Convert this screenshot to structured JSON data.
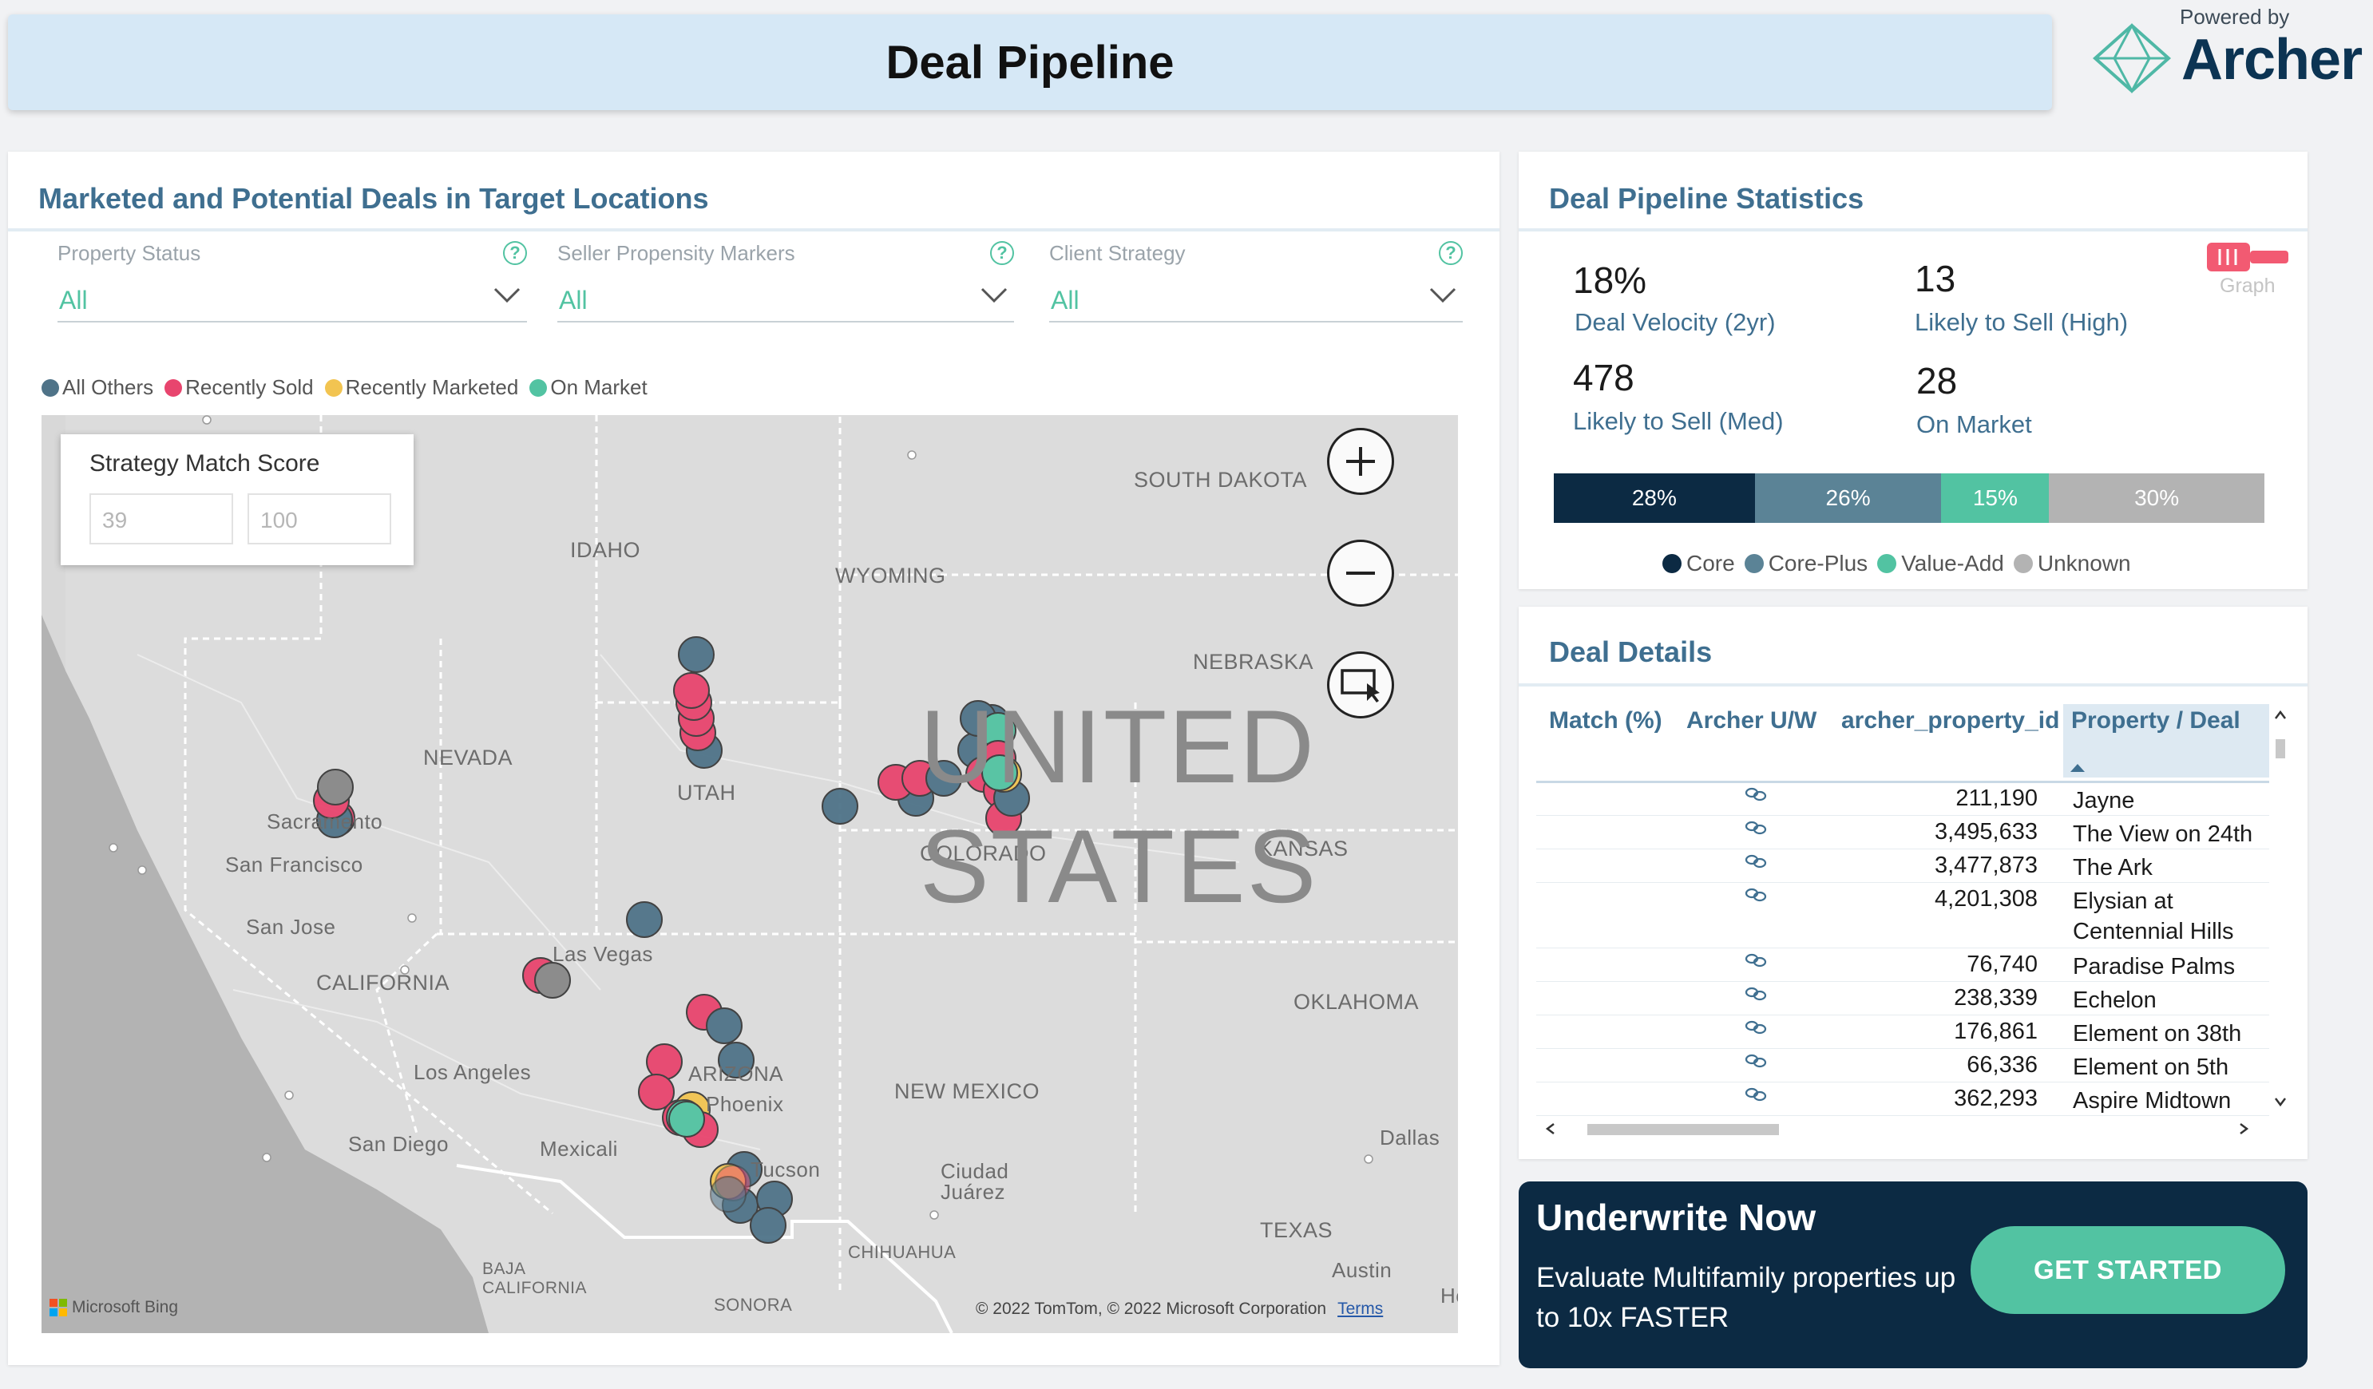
{
  "header": {
    "title": "Deal Pipeline",
    "powered_by": "Powered by",
    "brand": "Archer"
  },
  "map_card": {
    "title": "Marketed and Potential Deals in Target Locations",
    "filters": [
      {
        "label": "Property Status",
        "value": "All"
      },
      {
        "label": "Seller Propensity Markers",
        "value": "All"
      },
      {
        "label": "Client Strategy",
        "value": "All"
      }
    ],
    "legend": [
      {
        "label": "All Others",
        "color": "#4f7388"
      },
      {
        "label": "Recently Sold",
        "color": "#e8456e"
      },
      {
        "label": "Recently Marketed",
        "color": "#f2c451"
      },
      {
        "label": "On Market",
        "color": "#52c3a2"
      }
    ],
    "strategy_match": {
      "label": "Strategy Match Score",
      "min": "39",
      "max": "100"
    },
    "labels": {
      "south_dakota": "SOUTH DAKOTA",
      "idaho": "IDAHO",
      "wyoming": "WYOMING",
      "nebraska": "NEBRASKA",
      "nevada": "NEVADA",
      "utah": "UTAH",
      "colorado": "COLORADO",
      "kansas": "KANSAS",
      "sacramento": "Sacramento",
      "san_francisco": "San Francisco",
      "san_jose": "San Jose",
      "california": "CALIFORNIA",
      "las_vegas": "Las Vegas",
      "oklahoma": "OKLAHOMA",
      "los_angeles": "Los Angeles",
      "arizona": "ARIZONA",
      "phoenix": "Phoenix",
      "new_mexico": "NEW MEXICO",
      "san_diego": "San Diego",
      "mexicali": "Mexicali",
      "tucson": "Tucson",
      "ciudad_juarez": "Ciudad Juárez",
      "dallas": "Dallas",
      "texas": "TEXAS",
      "chihuahua": "CHIHUAHUA",
      "baja": "BAJA CALIFORNIA",
      "austin": "Austin",
      "sonora": "SONORA",
      "united_states": "UNITED STATES",
      "houston": "Ho"
    },
    "bing": "Microsoft Bing",
    "copyright": "© 2022 TomTom, © 2022 Microsoft Corporation",
    "terms": "Terms"
  },
  "stats_card": {
    "title": "Deal Pipeline Statistics",
    "stats": [
      {
        "value": "18%",
        "label": "Deal Velocity (2yr)"
      },
      {
        "value": "13",
        "label": "Likely to Sell (High)"
      },
      {
        "value": "478",
        "label": "Likely to Sell (Med)"
      },
      {
        "value": "28",
        "label": "On Market"
      }
    ],
    "graph_label": "Graph",
    "strategy_mix": [
      {
        "name": "Core",
        "label": "28%",
        "value": 28,
        "color": "#0c2a43"
      },
      {
        "name": "Core-Plus",
        "label": "26%",
        "value": 26,
        "color": "#5b8396"
      },
      {
        "name": "Value-Add",
        "label": "15%",
        "value": 15,
        "color": "#52c3a2"
      },
      {
        "name": "Unknown",
        "label": "30%",
        "value": 30,
        "color": "#b3b3b3"
      }
    ]
  },
  "details_card": {
    "title": "Deal Details",
    "columns": [
      "Match (%)",
      "Archer U/W",
      "archer_property_id",
      "Property / Deal"
    ],
    "rows": [
      {
        "id": "211,190",
        "name": "Jayne"
      },
      {
        "id": "3,495,633",
        "name": "The View on 24th"
      },
      {
        "id": "3,477,873",
        "name": "The Ark"
      },
      {
        "id": "4,201,308",
        "name": "Elysian at Centennial Hills"
      },
      {
        "id": "76,740",
        "name": "Paradise Palms"
      },
      {
        "id": "238,339",
        "name": "Echelon"
      },
      {
        "id": "176,861",
        "name": "Element on 38th"
      },
      {
        "id": "66,336",
        "name": "Element on 5th"
      },
      {
        "id": "362,293",
        "name": "Aspire Midtown"
      }
    ]
  },
  "cta": {
    "title": "Underwrite Now",
    "text": "Evaluate Multifamily properties up to 10x FASTER",
    "button": "GET STARTED"
  }
}
